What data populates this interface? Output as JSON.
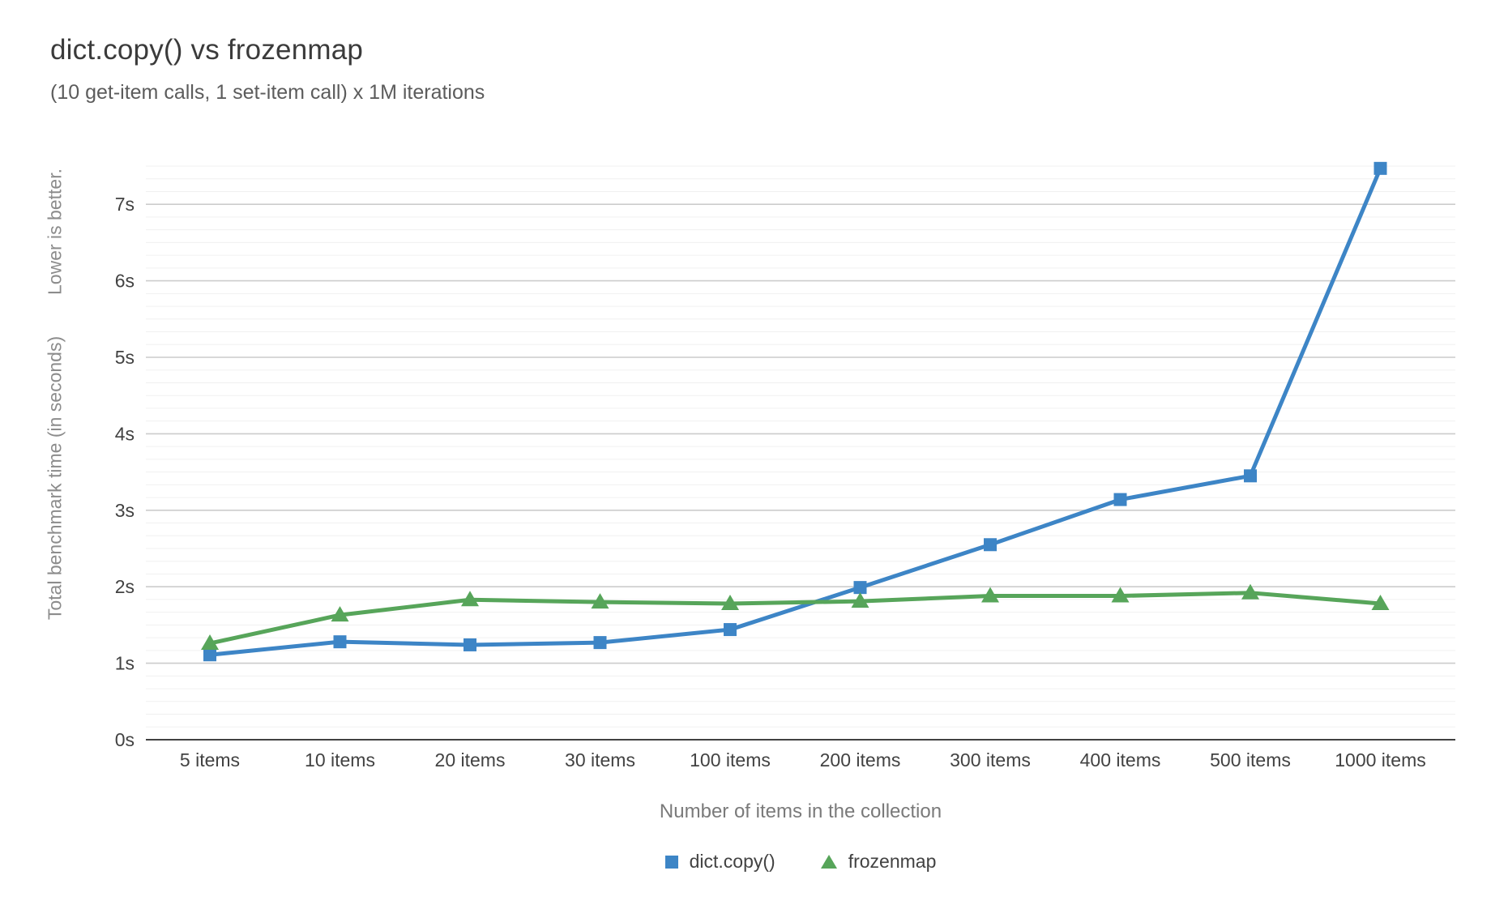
{
  "chart_data": {
    "type": "line",
    "title": "dict.copy() vs frozenmap",
    "subtitle": "(10 get-item calls, 1 set-item call) x 1M iterations",
    "xlabel": "Number of items in the collection",
    "ylabel": "Total benchmark time (in seconds)",
    "ylabel_note": "Lower is better.",
    "categories": [
      "5 items",
      "10 items",
      "20 items",
      "30 items",
      "100 items",
      "200 items",
      "300 items",
      "400 items",
      "500 items",
      "1000 items"
    ],
    "series": [
      {
        "name": "dict.copy()",
        "marker": "square",
        "color": "#3d85c6",
        "values": [
          1.11,
          1.28,
          1.24,
          1.27,
          1.44,
          1.99,
          2.55,
          3.14,
          3.45,
          7.47
        ]
      },
      {
        "name": "frozenmap",
        "marker": "triangle",
        "color": "#57a55a",
        "values": [
          1.26,
          1.63,
          1.83,
          1.8,
          1.78,
          1.81,
          1.88,
          1.88,
          1.92,
          1.78
        ]
      }
    ],
    "y_ticks": [
      "0s",
      "1s",
      "2s",
      "3s",
      "4s",
      "5s",
      "6s",
      "7s"
    ],
    "ylim": [
      0,
      7.5
    ],
    "grid": {
      "major_color": "#cccccc",
      "minor_color": "#f0f0f0",
      "baseline_color": "#424242",
      "minor_divisions_per_major": 6,
      "legend_position": "bottom"
    }
  }
}
